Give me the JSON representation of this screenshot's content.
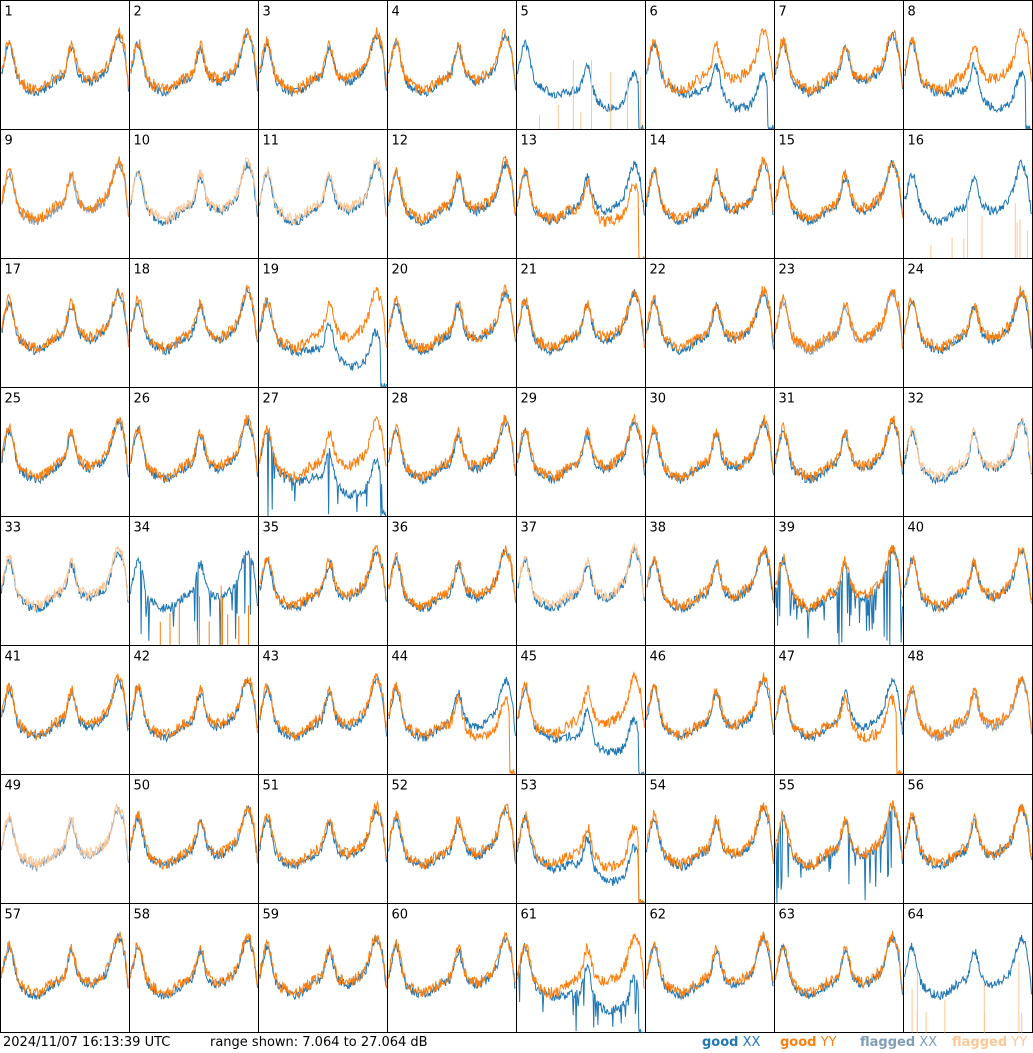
{
  "footer": {
    "timestamp": "2024/11/07 16:13:39 UTC",
    "range_text": "range shown: 7.064 to 27.064 dB"
  },
  "legend": {
    "good_word": "good",
    "flagged_word": "flagged",
    "xx": "XX",
    "yy": "YY"
  },
  "colors": {
    "good_xx": "#1f77b4",
    "good_yy": "#ff7f0e",
    "flagged_xx": "#7f9db9",
    "flagged_yy": "#ffc796",
    "frame": "#000000"
  },
  "chart_data": {
    "type": "line",
    "layout": "8x8 small multiples",
    "tiles": 64,
    "tile_labels": [
      "1",
      "2",
      "3",
      "4",
      "5",
      "6",
      "7",
      "8",
      "9",
      "10",
      "11",
      "12",
      "13",
      "14",
      "15",
      "16",
      "17",
      "18",
      "19",
      "20",
      "21",
      "22",
      "23",
      "24",
      "25",
      "26",
      "27",
      "28",
      "29",
      "30",
      "31",
      "32",
      "33",
      "34",
      "35",
      "36",
      "37",
      "38",
      "39",
      "40",
      "41",
      "42",
      "43",
      "44",
      "45",
      "46",
      "47",
      "48",
      "49",
      "50",
      "51",
      "52",
      "53",
      "54",
      "55",
      "56",
      "57",
      "58",
      "59",
      "60",
      "61",
      "62",
      "63",
      "64"
    ],
    "ylim_db": [
      7.064,
      27.064
    ],
    "series": [
      "good XX",
      "good YY",
      "flagged XX",
      "flagged YY"
    ],
    "tile_state": {
      "flagged_xx_tiles": [
        9,
        23,
        48,
        49
      ],
      "flagged_yy_tiles": [
        5,
        10,
        11,
        16,
        32,
        33,
        37,
        49,
        64
      ],
      "xx_dropout_tiles": [
        5,
        6,
        19,
        27,
        45,
        53,
        61,
        8
      ],
      "yy_dropout_tiles": [
        13,
        44,
        47,
        53
      ],
      "spiky_xx_tiles": [
        27,
        34,
        39,
        55,
        61
      ],
      "spiky_yy_tiles": [
        5,
        16,
        34,
        64
      ]
    }
  }
}
